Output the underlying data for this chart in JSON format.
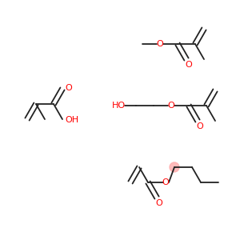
{
  "background_color": "#ffffff",
  "line_color": "#222222",
  "red_color": "#ff0000",
  "pink_color": "#ffaaaa",
  "line_width": 1.3,
  "figsize": [
    3.0,
    3.0
  ],
  "dpi": 100,
  "xlim": [
    0,
    300
  ],
  "ylim": [
    0,
    300
  ]
}
